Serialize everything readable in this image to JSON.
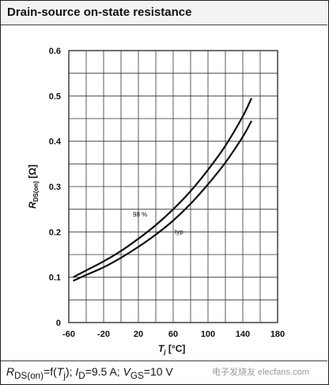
{
  "header": {
    "title": "Drain-source on-state resistance"
  },
  "footer": {
    "caption": "RDS(on)=f(Tj); ID=9.5 A; VGS=10 V"
  },
  "watermark": "电子发烧友 elecfans.com",
  "chart_data": {
    "type": "line",
    "title": "Drain-source on-state resistance",
    "xlabel": "Tj [°C]",
    "ylabel": "RDS(on) [Ω]",
    "xlim": [
      -60,
      180
    ],
    "ylim": [
      0,
      0.6
    ],
    "xticks": [
      -60,
      -20,
      20,
      60,
      100,
      140,
      180
    ],
    "yticks": [
      0,
      0.1,
      0.2,
      0.3,
      0.4,
      0.5,
      0.6
    ],
    "grid": true,
    "series": [
      {
        "name": "98 %",
        "x": [
          -55,
          -40,
          -20,
          0,
          20,
          40,
          60,
          80,
          100,
          120,
          140,
          150
        ],
        "y": [
          0.1,
          0.115,
          0.135,
          0.158,
          0.185,
          0.215,
          0.25,
          0.29,
          0.337,
          0.39,
          0.455,
          0.495
        ]
      },
      {
        "name": "typ",
        "x": [
          -55,
          -40,
          -20,
          0,
          20,
          40,
          60,
          80,
          100,
          120,
          140,
          150
        ],
        "y": [
          0.092,
          0.105,
          0.122,
          0.143,
          0.167,
          0.194,
          0.225,
          0.262,
          0.305,
          0.353,
          0.41,
          0.445
        ]
      }
    ]
  }
}
